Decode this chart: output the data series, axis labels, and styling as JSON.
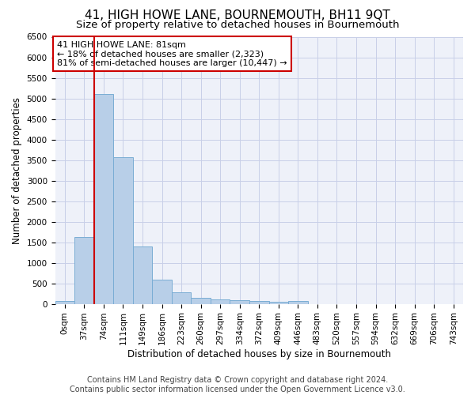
{
  "title": "41, HIGH HOWE LANE, BOURNEMOUTH, BH11 9QT",
  "subtitle": "Size of property relative to detached houses in Bournemouth",
  "xlabel": "Distribution of detached houses by size in Bournemouth",
  "ylabel": "Number of detached properties",
  "footer_line1": "Contains HM Land Registry data © Crown copyright and database right 2024.",
  "footer_line2": "Contains public sector information licensed under the Open Government Licence v3.0.",
  "categories": [
    "0sqm",
    "37sqm",
    "74sqm",
    "111sqm",
    "149sqm",
    "186sqm",
    "223sqm",
    "260sqm",
    "297sqm",
    "334sqm",
    "372sqm",
    "409sqm",
    "446sqm",
    "483sqm",
    "520sqm",
    "557sqm",
    "594sqm",
    "632sqm",
    "669sqm",
    "706sqm",
    "743sqm"
  ],
  "values": [
    75,
    1625,
    5100,
    3575,
    1400,
    580,
    290,
    150,
    110,
    80,
    60,
    55,
    70,
    0,
    0,
    0,
    0,
    0,
    0,
    0,
    0
  ],
  "bar_color": "#b8cfe8",
  "bar_edge_color": "#7aadd4",
  "vline_bar_index": 2,
  "vline_color": "#cc0000",
  "annotation_text": "41 HIGH HOWE LANE: 81sqm\n← 18% of detached houses are smaller (2,323)\n81% of semi-detached houses are larger (10,447) →",
  "ylim": [
    0,
    6500
  ],
  "yticks": [
    0,
    500,
    1000,
    1500,
    2000,
    2500,
    3000,
    3500,
    4000,
    4500,
    5000,
    5500,
    6000,
    6500
  ],
  "bg_color": "#eef1f9",
  "grid_color": "#c8cfe8",
  "title_fontsize": 11,
  "subtitle_fontsize": 9.5,
  "axis_label_fontsize": 8.5,
  "tick_fontsize": 7.5,
  "annotation_fontsize": 8,
  "footer_fontsize": 7
}
